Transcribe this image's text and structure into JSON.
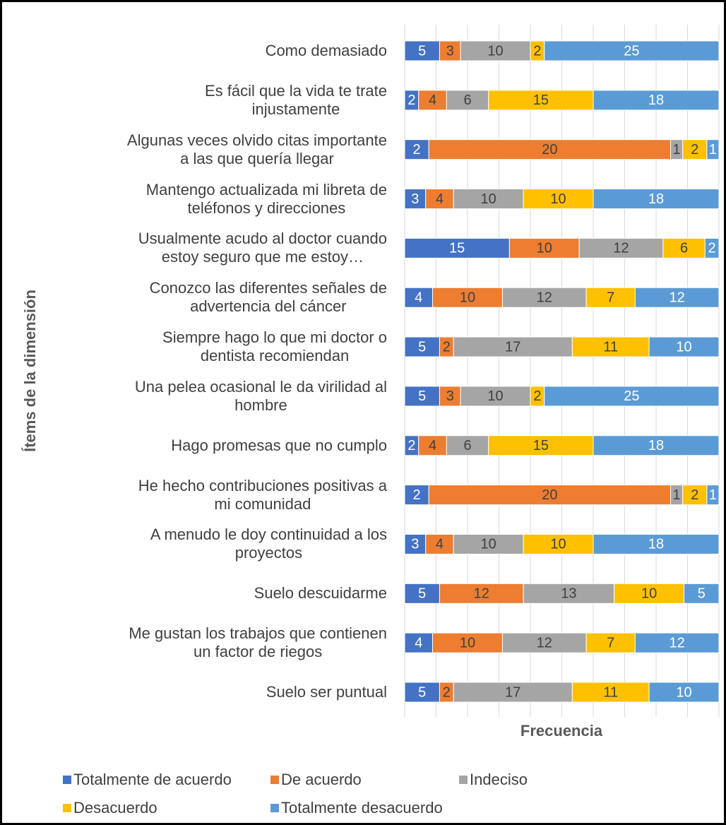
{
  "chart_data": {
    "type": "bar",
    "orientation": "horizontal",
    "stack": "percent",
    "x_label": "Frecuencia",
    "y_label": "Ítems de la dimensión",
    "categories": [
      "Como demasiado",
      "Es fácil que la vida te trate\ninjustamente",
      "Algunas veces olvido citas importante\na las que quería llegar",
      "Mantengo actualizada mi libreta de\nteléfonos y direcciones",
      "Usualmente acudo al doctor cuando\nestoy seguro que me estoy…",
      "Conozco las diferentes señales de\nadvertencia del cáncer",
      "Siempre hago lo que mi doctor o\ndentista recomiendan",
      "Una pelea ocasional le da virilidad al\nhombre",
      "Hago promesas que no cumplo",
      "He hecho contribuciones positivas a\nmi comunidad",
      "A menudo le doy continuidad a los\nproyectos",
      "Suelo descuidarme",
      "Me gustan los trabajos que contienen\nun factor de riegos",
      "Suelo ser puntual"
    ],
    "series": [
      {
        "name": "Totalmente de acuerdo",
        "color": "#4472c4",
        "values": [
          5,
          2,
          2,
          3,
          15,
          4,
          5,
          5,
          2,
          2,
          3,
          5,
          4,
          5
        ]
      },
      {
        "name": "De acuerdo",
        "color": "#ed7d31",
        "values": [
          3,
          4,
          20,
          4,
          10,
          10,
          2,
          3,
          4,
          20,
          4,
          12,
          10,
          2
        ]
      },
      {
        "name": "Indeciso",
        "color": "#a5a5a5",
        "values": [
          10,
          6,
          1,
          10,
          12,
          12,
          17,
          10,
          6,
          1,
          10,
          13,
          12,
          17
        ]
      },
      {
        "name": "Desacuerdo",
        "color": "#ffc000",
        "values": [
          2,
          15,
          2,
          10,
          6,
          7,
          11,
          2,
          15,
          2,
          10,
          10,
          7,
          11
        ]
      },
      {
        "name": "Totalmente desacuerdo",
        "color": "#5b9bd5",
        "values": [
          25,
          18,
          1,
          18,
          2,
          12,
          10,
          25,
          18,
          1,
          18,
          5,
          12,
          10
        ]
      }
    ],
    "xlim": [
      0,
      100
    ],
    "xticks": [
      0,
      10,
      20,
      30,
      40,
      50,
      60,
      70,
      80,
      90,
      100
    ],
    "grid": true,
    "legend": "bottom"
  }
}
